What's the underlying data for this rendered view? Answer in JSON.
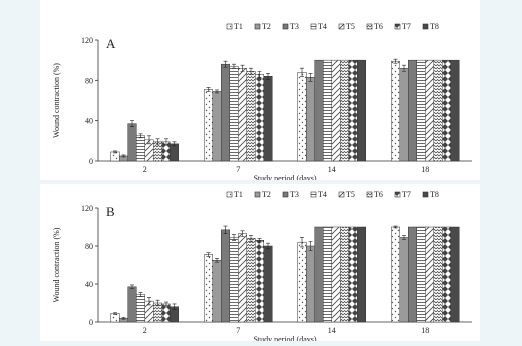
{
  "chart_data": [
    {
      "type": "bar",
      "panel_label": "A",
      "categories": [
        "2",
        "7",
        "14",
        "18"
      ],
      "xlabel": "Study period (days)",
      "ylabel": "Wound contraction (%)",
      "ylim": [
        0,
        120
      ],
      "yticks": [
        "0",
        "40",
        "80",
        "120"
      ],
      "legend_position": "top",
      "series": [
        {
          "name": "T1",
          "values": [
            9,
            71,
            88,
            99
          ],
          "errors": [
            1.0,
            2.0,
            4.0,
            2.0
          ],
          "pattern": "dots"
        },
        {
          "name": "T2",
          "values": [
            5,
            69,
            83,
            92
          ],
          "errors": [
            1.0,
            1.5,
            4.0,
            3.0
          ],
          "pattern": "grey"
        },
        {
          "name": "T3",
          "values": [
            37,
            96,
            100,
            100
          ],
          "errors": [
            3.0,
            3.0,
            0,
            0
          ],
          "pattern": "darkgrey"
        },
        {
          "name": "T4",
          "values": [
            25,
            94,
            100,
            100
          ],
          "errors": [
            2.0,
            2.0,
            0,
            0
          ],
          "pattern": "horizontal"
        },
        {
          "name": "T5",
          "values": [
            21,
            92,
            100,
            100
          ],
          "errors": [
            4.0,
            3.0,
            0,
            0
          ],
          "pattern": "diagonal"
        },
        {
          "name": "T6",
          "values": [
            19,
            89,
            100,
            100
          ],
          "errors": [
            3.0,
            3.0,
            0,
            0
          ],
          "pattern": "zigzag"
        },
        {
          "name": "T7",
          "values": [
            19,
            86,
            100,
            100
          ],
          "errors": [
            3.0,
            3.0,
            0,
            0
          ],
          "pattern": "diamond"
        },
        {
          "name": "T8",
          "values": [
            17,
            84,
            100,
            100
          ],
          "errors": [
            2.0,
            3.0,
            0,
            0
          ],
          "pattern": "black"
        }
      ]
    },
    {
      "type": "bar",
      "panel_label": "B",
      "categories": [
        "2",
        "7",
        "14",
        "18"
      ],
      "xlabel": "Study period (days)",
      "ylabel": "Wound contraction (%)",
      "ylim": [
        0,
        120
      ],
      "yticks": [
        "0",
        "40",
        "80",
        "120"
      ],
      "legend_position": "top",
      "series": [
        {
          "name": "T1",
          "values": [
            9,
            71,
            84,
            100
          ],
          "errors": [
            1.0,
            2.0,
            5.0,
            1.0
          ],
          "pattern": "dots"
        },
        {
          "name": "T2",
          "values": [
            4,
            65,
            80,
            89
          ],
          "errors": [
            1.0,
            2.0,
            5.0,
            2.0
          ],
          "pattern": "grey"
        },
        {
          "name": "T3",
          "values": [
            37,
            97,
            100,
            100
          ],
          "errors": [
            2.0,
            4.0,
            0,
            0
          ],
          "pattern": "darkgrey"
        },
        {
          "name": "T4",
          "values": [
            29,
            89,
            100,
            100
          ],
          "errors": [
            2.0,
            3.0,
            0,
            0
          ],
          "pattern": "horizontal"
        },
        {
          "name": "T5",
          "values": [
            22,
            93,
            100,
            100
          ],
          "errors": [
            4.0,
            3.0,
            0,
            0
          ],
          "pattern": "diagonal"
        },
        {
          "name": "T6",
          "values": [
            20,
            88,
            100,
            100
          ],
          "errors": [
            3.0,
            3.0,
            0,
            0
          ],
          "pattern": "zigzag"
        },
        {
          "name": "T7",
          "values": [
            19,
            86,
            100,
            100
          ],
          "errors": [
            2.0,
            2.0,
            0,
            0
          ],
          "pattern": "diamond"
        },
        {
          "name": "T8",
          "values": [
            16,
            80,
            100,
            100
          ],
          "errors": [
            3.0,
            3.0,
            0,
            0
          ],
          "pattern": "black"
        }
      ]
    }
  ]
}
